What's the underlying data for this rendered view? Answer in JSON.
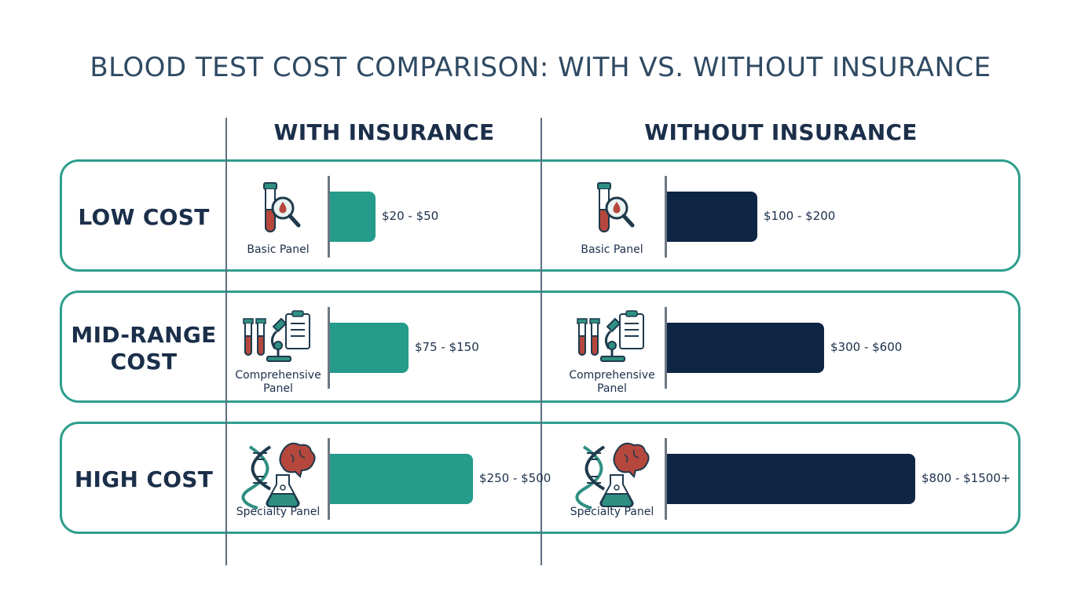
{
  "title": "BLOOD TEST COST COMPARISON: WITH VS. WITHOUT INSURANCE",
  "columns": {
    "with": "WITH INSURANCE",
    "without": "WITHOUT INSURANCE"
  },
  "colors": {
    "with_bar": "#259b8b",
    "without_bar": "#0e2544",
    "row_border": "#2f9e8c",
    "text": "#1b2f4a"
  },
  "rows": [
    {
      "label": "LOW COST",
      "panel": "Basic Panel",
      "icon": "blood-tube-magnifier-icon"
    },
    {
      "label": "MID-RANGE COST",
      "panel": "Comprehensive Panel",
      "icon": "tubes-microscope-clipboard-icon"
    },
    {
      "label": "HIGH COST",
      "panel": "Specialty Panel",
      "icon": "dna-brain-flask-icon"
    }
  ],
  "chart_data": {
    "type": "bar",
    "title": "BLOOD TEST COST COMPARISON: WITH VS. WITHOUT INSURANCE",
    "categories": [
      "LOW COST",
      "MID-RANGE COST",
      "HIGH COST"
    ],
    "series": [
      {
        "name": "WITH INSURANCE",
        "ranges": [
          [
            20,
            50
          ],
          [
            75,
            150
          ],
          [
            250,
            500
          ]
        ],
        "labels": [
          "$20 - $50",
          "$75 - $150",
          "$250 - $500"
        ]
      },
      {
        "name": "WITHOUT INSURANCE",
        "ranges": [
          [
            100,
            200
          ],
          [
            300,
            600
          ],
          [
            800,
            1500
          ]
        ],
        "labels": [
          "$100 - $200",
          "$300 - $600",
          "$800 - $1500+"
        ]
      }
    ],
    "xlabel": "",
    "ylabel": "",
    "grid": false,
    "legend": "none"
  }
}
